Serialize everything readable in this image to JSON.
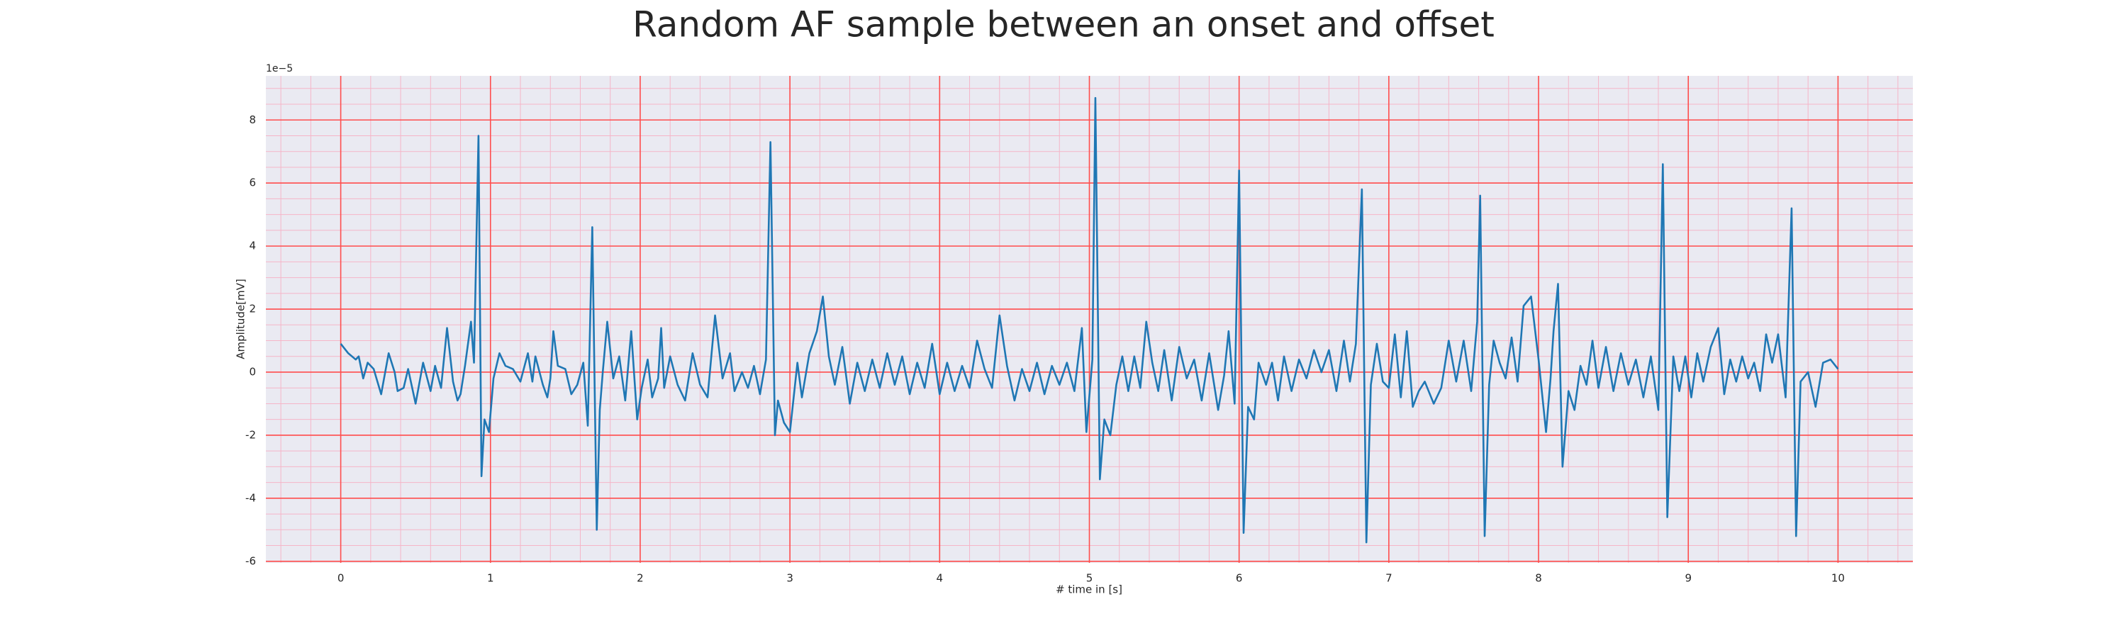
{
  "chart_data": {
    "type": "line",
    "title": "Random AF sample between an onset and offset",
    "xlabel": "# time in [s]",
    "ylabel": "Amplitude[mV]",
    "y_offset_label": "1e−5",
    "xlim": [
      -0.5,
      10.5
    ],
    "ylim": [
      -6.05,
      9.4
    ],
    "xticks": [
      0,
      1,
      2,
      3,
      4,
      5,
      6,
      7,
      8,
      9,
      10
    ],
    "yticks": [
      -6,
      -4,
      -2,
      0,
      2,
      4,
      6,
      8
    ],
    "x_minor_ticks": [
      -0.4,
      -0.2,
      0,
      0.2,
      0.4,
      0.6,
      0.8,
      1,
      1.2,
      1.4,
      1.6,
      1.8,
      2,
      2.2,
      2.4,
      2.6,
      2.8,
      3,
      3.2,
      3.4,
      3.6,
      3.8,
      4,
      4.2,
      4.4,
      4.6,
      4.8,
      5,
      5.2,
      5.4,
      5.6,
      5.8,
      6,
      6.2,
      6.4,
      6.6,
      6.8,
      7,
      7.2,
      7.4,
      7.6,
      7.8,
      8,
      8.2,
      8.4,
      8.6,
      8.8,
      9,
      9.2,
      9.4,
      9.6,
      9.8,
      10,
      10.2,
      10.4
    ],
    "y_minor_ticks": [
      -6,
      -5.5,
      -5,
      -4.5,
      -4,
      -3.5,
      -3,
      -2.5,
      -2,
      -1.5,
      -1,
      -0.5,
      0,
      0.5,
      1,
      1.5,
      2,
      2.5,
      3,
      3.5,
      4,
      4.5,
      5,
      5.5,
      6,
      6.5,
      7,
      7.5,
      8,
      8.5,
      9
    ],
    "grid": true,
    "grid_color": "#ff4d4d",
    "minor_grid_color": "#f5b5c8",
    "background": "#eaeaf2",
    "series": [
      {
        "color": "#1f77b4",
        "x": [
          0,
          0.05,
          0.1,
          0.12,
          0.15,
          0.18,
          0.22,
          0.27,
          0.32,
          0.36,
          0.38,
          0.42,
          0.45,
          0.5,
          0.55,
          0.6,
          0.63,
          0.67,
          0.71,
          0.75,
          0.78,
          0.8,
          0.83,
          0.87,
          0.89,
          0.92,
          0.94,
          0.96,
          0.99,
          1.02,
          1.06,
          1.1,
          1.15,
          1.2,
          1.25,
          1.28,
          1.3,
          1.35,
          1.38,
          1.4,
          1.42,
          1.45,
          1.5,
          1.54,
          1.58,
          1.62,
          1.65,
          1.68,
          1.71,
          1.73,
          1.75,
          1.78,
          1.82,
          1.86,
          1.9,
          1.94,
          1.98,
          2.01,
          2.05,
          2.08,
          2.12,
          2.14,
          2.16,
          2.2,
          2.25,
          2.3,
          2.35,
          2.4,
          2.45,
          2.5,
          2.55,
          2.6,
          2.63,
          2.68,
          2.72,
          2.76,
          2.8,
          2.84,
          2.87,
          2.9,
          2.92,
          2.96,
          3.0,
          3.05,
          3.08,
          3.13,
          3.18,
          3.22,
          3.26,
          3.3,
          3.35,
          3.4,
          3.45,
          3.5,
          3.55,
          3.6,
          3.65,
          3.7,
          3.75,
          3.8,
          3.85,
          3.9,
          3.95,
          4.0,
          4.05,
          4.1,
          4.15,
          4.2,
          4.25,
          4.3,
          4.35,
          4.4,
          4.45,
          4.5,
          4.55,
          4.6,
          4.65,
          4.7,
          4.75,
          4.8,
          4.85,
          4.9,
          4.95,
          4.98,
          5.02,
          5.04,
          5.07,
          5.1,
          5.14,
          5.18,
          5.22,
          5.26,
          5.3,
          5.34,
          5.38,
          5.42,
          5.46,
          5.5,
          5.55,
          5.6,
          5.65,
          5.7,
          5.75,
          5.8,
          5.86,
          5.9,
          5.93,
          5.97,
          6.0,
          6.03,
          6.06,
          6.1,
          6.13,
          6.18,
          6.22,
          6.26,
          6.3,
          6.35,
          6.4,
          6.45,
          6.5,
          6.55,
          6.6,
          6.65,
          6.7,
          6.74,
          6.78,
          6.82,
          6.85,
          6.88,
          6.92,
          6.96,
          7.0,
          7.04,
          7.08,
          7.12,
          7.16,
          7.2,
          7.24,
          7.3,
          7.35,
          7.4,
          7.45,
          7.5,
          7.55,
          7.59,
          7.61,
          7.64,
          7.67,
          7.7,
          7.74,
          7.78,
          7.82,
          7.86,
          7.9,
          7.95,
          8.0,
          8.05,
          8.08,
          8.1,
          8.13,
          8.16,
          8.2,
          8.24,
          8.28,
          8.32,
          8.36,
          8.4,
          8.45,
          8.5,
          8.55,
          8.6,
          8.65,
          8.7,
          8.75,
          8.8,
          8.83,
          8.86,
          8.9,
          8.94,
          8.98,
          9.02,
          9.06,
          9.1,
          9.15,
          9.2,
          9.24,
          9.28,
          9.32,
          9.36,
          9.4,
          9.44,
          9.48,
          9.52,
          9.56,
          9.6,
          9.65,
          9.69,
          9.72,
          9.75,
          9.8,
          9.85,
          9.9,
          9.95,
          10.0
        ],
        "values": [
          0.9,
          0.6,
          0.4,
          0.5,
          -0.2,
          0.3,
          0.1,
          -0.7,
          0.6,
          0.0,
          -0.6,
          -0.5,
          0.1,
          -1.0,
          0.3,
          -0.6,
          0.2,
          -0.5,
          1.4,
          -0.3,
          -0.9,
          -0.7,
          0.2,
          1.6,
          0.3,
          7.5,
          -3.3,
          -1.5,
          -1.9,
          -0.2,
          0.6,
          0.2,
          0.1,
          -0.3,
          0.6,
          -0.3,
          0.5,
          -0.4,
          -0.8,
          -0.2,
          1.3,
          0.2,
          0.1,
          -0.7,
          -0.4,
          0.3,
          -1.7,
          4.6,
          -5.0,
          -1.2,
          0.0,
          1.6,
          -0.2,
          0.5,
          -0.9,
          1.3,
          -1.5,
          -0.5,
          0.4,
          -0.8,
          -0.2,
          1.4,
          -0.5,
          0.5,
          -0.4,
          -0.9,
          0.6,
          -0.4,
          -0.8,
          1.8,
          -0.2,
          0.6,
          -0.6,
          0.0,
          -0.5,
          0.2,
          -0.7,
          0.4,
          7.3,
          -2.0,
          -0.9,
          -1.6,
          -1.9,
          0.3,
          -0.8,
          0.6,
          1.3,
          2.4,
          0.5,
          -0.4,
          0.8,
          -1.0,
          0.3,
          -0.6,
          0.4,
          -0.5,
          0.6,
          -0.4,
          0.5,
          -0.7,
          0.3,
          -0.5,
          0.9,
          -0.7,
          0.3,
          -0.6,
          0.2,
          -0.5,
          1.0,
          0.1,
          -0.5,
          1.8,
          0.2,
          -0.9,
          0.1,
          -0.6,
          0.3,
          -0.7,
          0.2,
          -0.4,
          0.3,
          -0.6,
          1.4,
          -1.9,
          0.4,
          8.7,
          -3.4,
          -1.5,
          -2.0,
          -0.4,
          0.5,
          -0.6,
          0.5,
          -0.5,
          1.6,
          0.3,
          -0.6,
          0.7,
          -0.9,
          0.8,
          -0.2,
          0.4,
          -0.9,
          0.6,
          -1.2,
          -0.1,
          1.3,
          -1.0,
          6.4,
          -5.1,
          -1.1,
          -1.5,
          0.3,
          -0.4,
          0.3,
          -0.9,
          0.5,
          -0.6,
          0.4,
          -0.2,
          0.7,
          0.0,
          0.7,
          -0.6,
          1.0,
          -0.3,
          0.9,
          5.8,
          -5.4,
          -0.4,
          0.9,
          -0.3,
          -0.5,
          1.2,
          -0.8,
          1.3,
          -1.1,
          -0.6,
          -0.3,
          -1.0,
          -0.5,
          1.0,
          -0.3,
          1.0,
          -0.6,
          1.6,
          5.6,
          -5.2,
          -0.4,
          1.0,
          0.3,
          -0.2,
          1.1,
          -0.3,
          2.1,
          2.4,
          0.4,
          -1.9,
          -0.2,
          1.3,
          2.8,
          -3.0,
          -0.6,
          -1.2,
          0.2,
          -0.4,
          1.0,
          -0.5,
          0.8,
          -0.6,
          0.6,
          -0.4,
          0.4,
          -0.8,
          0.5,
          -1.2,
          6.6,
          -4.6,
          0.5,
          -0.6,
          0.5,
          -0.8,
          0.6,
          -0.3,
          0.8,
          1.4,
          -0.7,
          0.4,
          -0.3,
          0.5,
          -0.2,
          0.3,
          -0.6,
          1.2,
          0.3,
          1.2,
          -0.8,
          5.2,
          -5.2,
          -0.3,
          0.0,
          -1.1,
          0.3,
          0.4,
          0.1
        ]
      }
    ]
  }
}
